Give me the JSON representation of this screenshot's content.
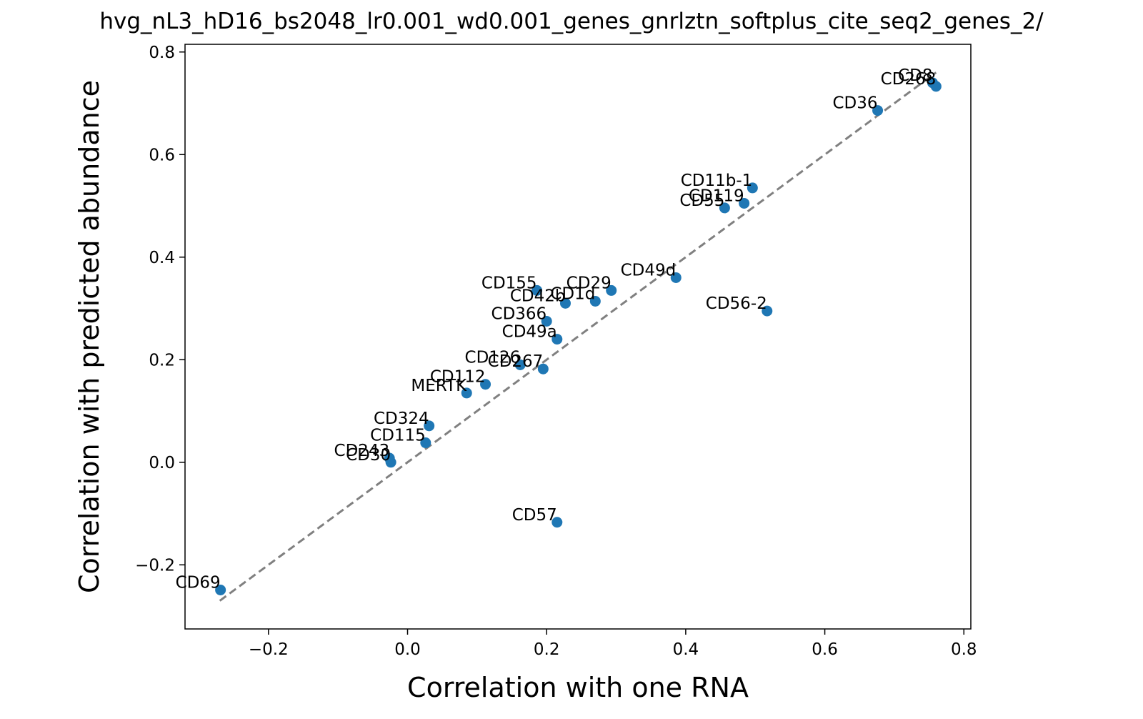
{
  "chart_data": {
    "type": "scatter",
    "title": "hvg_nL3_hD16_bs2048_lr0.001_wd0.001_genes_gnrlztn_softplus_cite_seq2_genes_2/",
    "xlabel": "Correlation with one RNA",
    "ylabel": "Correlation with predicted abundance",
    "xlim": [
      -0.32,
      0.81
    ],
    "ylim": [
      -0.325,
      0.815
    ],
    "xticks": [
      -0.2,
      0.0,
      0.2,
      0.4,
      0.6,
      0.8
    ],
    "yticks": [
      -0.2,
      0.0,
      0.2,
      0.4,
      0.6,
      0.8
    ],
    "xtick_labels": [
      "−0.2",
      "0.0",
      "0.2",
      "0.4",
      "0.6",
      "0.8"
    ],
    "ytick_labels": [
      "−0.2",
      "0.0",
      "0.2",
      "0.4",
      "0.6",
      "0.8"
    ],
    "grid": false,
    "point_color": "#1f77b4",
    "reference_line": {
      "style": "dashed",
      "color": "#808080",
      "x": [
        -0.27,
        0.76
      ],
      "y": [
        -0.27,
        0.76
      ]
    },
    "points": [
      {
        "label": "CD8",
        "x": 0.755,
        "y": 0.74
      },
      {
        "label": "CD268",
        "x": 0.76,
        "y": 0.733
      },
      {
        "label": "CD36",
        "x": 0.676,
        "y": 0.686
      },
      {
        "label": "CD11b-1",
        "x": 0.496,
        "y": 0.535
      },
      {
        "label": "CD119",
        "x": 0.484,
        "y": 0.505
      },
      {
        "label": "CD55",
        "x": 0.456,
        "y": 0.496
      },
      {
        "label": "CD49d",
        "x": 0.386,
        "y": 0.36
      },
      {
        "label": "CD56-2",
        "x": 0.517,
        "y": 0.295
      },
      {
        "label": "CD29",
        "x": 0.293,
        "y": 0.335
      },
      {
        "label": "CD1d",
        "x": 0.27,
        "y": 0.314
      },
      {
        "label": "CD42b",
        "x": 0.227,
        "y": 0.31
      },
      {
        "label": "CD155",
        "x": 0.186,
        "y": 0.335
      },
      {
        "label": "CD366",
        "x": 0.2,
        "y": 0.275
      },
      {
        "label": "CD49a",
        "x": 0.215,
        "y": 0.24
      },
      {
        "label": "CD267",
        "x": 0.195,
        "y": 0.182
      },
      {
        "label": "CD126",
        "x": 0.162,
        "y": 0.19
      },
      {
        "label": "CD112",
        "x": 0.112,
        "y": 0.152
      },
      {
        "label": "MERTK",
        "x": 0.085,
        "y": 0.135
      },
      {
        "label": "CD324",
        "x": 0.031,
        "y": 0.071
      },
      {
        "label": "CD115",
        "x": 0.026,
        "y": 0.038
      },
      {
        "label": "CD243",
        "x": -0.026,
        "y": 0.008
      },
      {
        "label": "CD30",
        "x": -0.024,
        "y": 0.0
      },
      {
        "label": "CD57",
        "x": 0.215,
        "y": -0.117
      },
      {
        "label": "CD69",
        "x": -0.269,
        "y": -0.249
      }
    ]
  }
}
